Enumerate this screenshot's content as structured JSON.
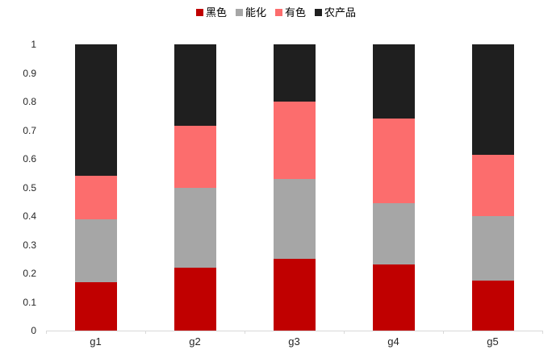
{
  "chart_data": {
    "type": "bar",
    "stacked": true,
    "title": "",
    "xlabel": "",
    "ylabel": "",
    "categories": [
      "g1",
      "g2",
      "g3",
      "g4",
      "g5"
    ],
    "series": [
      {
        "name": "黑色",
        "color": "#c00000",
        "values": [
          0.17,
          0.22,
          0.25,
          0.23,
          0.175
        ]
      },
      {
        "name": "能化",
        "color": "#a6a6a6",
        "values": [
          0.22,
          0.28,
          0.28,
          0.215,
          0.225
        ]
      },
      {
        "name": "有色",
        "color": "#fc6d6d",
        "values": [
          0.15,
          0.215,
          0.27,
          0.295,
          0.215
        ]
      },
      {
        "name": "农产品",
        "color": "#1f1f1f",
        "values": [
          0.46,
          0.285,
          0.2,
          0.26,
          0.385
        ]
      }
    ],
    "ylim": [
      0,
      1
    ],
    "ytick_labels": [
      "0",
      "0.1",
      "0.2",
      "0.3",
      "0.4",
      "0.5",
      "0.6",
      "0.7",
      "0.8",
      "0.9",
      "1"
    ],
    "yticks": [
      0,
      0.1,
      0.2,
      0.3,
      0.4,
      0.5,
      0.6,
      0.7,
      0.8,
      0.9,
      1
    ],
    "legend_position": "top",
    "grid": false,
    "axis_color": "#d9d9d9",
    "label_color": "#262626",
    "background": "#ffffff"
  }
}
